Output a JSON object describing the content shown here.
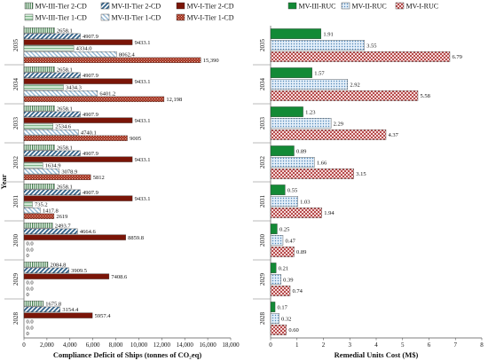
{
  "colors": {
    "tier2_dark_red": "#7a1508",
    "tier1_red_pattern": "#9e2a17",
    "tier2_blue_hatch": "#2f5f86",
    "tier1_blue_light": "#8db3d1",
    "tier2_green_vstripe": "#3f7f4a",
    "tier1_green_light": "#7fb58a",
    "ruc_green": "#138a36",
    "ruc_blue": "#4f86b8",
    "ruc_red": "#a02020"
  },
  "chart_data": [
    {
      "type": "bar",
      "orientation": "horizontal",
      "xlabel": "Compliance Deficit of Ships (tonnes of CO₂eq)",
      "ylabel": "Year",
      "xlim": [
        0,
        18000
      ],
      "xticks": [
        0,
        2000,
        4000,
        6000,
        8000,
        10000,
        12000,
        14000,
        16000,
        18000
      ],
      "xtick_labels": [
        "0",
        "2,000",
        "4,000",
        "6,000",
        "8,000",
        "10,000",
        "12,000",
        "14,000",
        "16,000",
        "18,000"
      ],
      "legend_position": "top",
      "categories": [
        "2035",
        "2034",
        "2033",
        "2032",
        "2031",
        "2030",
        "2029",
        "2028"
      ],
      "series": [
        {
          "name": "MV-III-Tier 2-CD",
          "pattern": "tier2_green_vstripe",
          "values": [
            2658.1,
            2658.1,
            2658.1,
            2658.1,
            2658.1,
            2493.7,
            2084.8,
            1675.8
          ],
          "labels": [
            "2658.1",
            "2658.1",
            "2658.1",
            "2658.1",
            "2658.1",
            "2493.7",
            "2084.8",
            "1675.8"
          ]
        },
        {
          "name": "MV-II-Tier 2-CD",
          "pattern": "tier2_blue_hatch",
          "values": [
            4907.9,
            4907.9,
            4907.9,
            4907.9,
            4907.9,
            4664.6,
            3909.5,
            3154.4
          ],
          "labels": [
            "4907.9",
            "4907.9",
            "4907.9",
            "4907.9",
            "4907.9",
            "4664.6",
            "3909.5",
            "3154.4"
          ]
        },
        {
          "name": "MV-I-Tier 2-CD",
          "pattern": "tier2_dark_red",
          "values": [
            9433.1,
            9433.1,
            9433.1,
            9433.1,
            9433.1,
            8859.8,
            7408.6,
            5957.4
          ],
          "labels": [
            "9433.1",
            "9433.1",
            "9433.1",
            "9433.1",
            "9433.1",
            "8859.8",
            "7408.6",
            "5957.4"
          ]
        },
        {
          "name": "MV-III-Tier 1-CD",
          "pattern": "tier1_green_light",
          "values": [
            4334.0,
            3434.3,
            2534.6,
            1634.9,
            735.2,
            0,
            0,
            0
          ],
          "labels": [
            "4334.0",
            "3434.3",
            "2534.6",
            "1634.9",
            "735.2",
            "0.0",
            "0.0",
            "0.0"
          ]
        },
        {
          "name": "MV-II-Tier 1-CD",
          "pattern": "tier1_blue_light",
          "values": [
            8062.4,
            6401.2,
            4740.1,
            3078.9,
            1417.8,
            0,
            0,
            0
          ],
          "labels": [
            "8062.4",
            "6401.2",
            "4740.1",
            "3078.9",
            "1417.8",
            "0.0",
            "0.0",
            "0.0"
          ]
        },
        {
          "name": "MV-I-Tier 1-CD",
          "pattern": "tier1_red_pattern",
          "values": [
            15390,
            12198,
            9005,
            5812,
            2619,
            0,
            0,
            0
          ],
          "labels": [
            "15,390",
            "12,198",
            "9005",
            "5812",
            "2619",
            "0",
            "0",
            "0"
          ]
        }
      ]
    },
    {
      "type": "bar",
      "orientation": "horizontal",
      "xlabel": "Remedial Units Cost (M$)",
      "ylabel": "",
      "xlim": [
        0,
        8
      ],
      "xticks": [
        0,
        1,
        2,
        3,
        4,
        5,
        6,
        7,
        8
      ],
      "xtick_labels": [
        "0",
        "1",
        "2",
        "3",
        "4",
        "5",
        "6",
        "7",
        "8"
      ],
      "legend_position": "top",
      "categories": [
        "2035",
        "2034",
        "2033",
        "2032",
        "2031",
        "2030",
        "2029",
        "2028"
      ],
      "series": [
        {
          "name": "MV-III-RUC",
          "pattern": "ruc_green",
          "values": [
            1.91,
            1.57,
            1.23,
            0.89,
            0.55,
            0.25,
            0.21,
            0.17
          ],
          "labels": [
            "1.91",
            "1.57",
            "1.23",
            "0.89",
            "0.55",
            "0.25",
            "0.21",
            "0.17"
          ]
        },
        {
          "name": "MV-II-RUC",
          "pattern": "ruc_blue",
          "values": [
            3.55,
            2.92,
            2.29,
            1.66,
            1.03,
            0.47,
            0.39,
            0.32
          ],
          "labels": [
            "3.55",
            "2.92",
            "2.29",
            "1.66",
            "1.03",
            "0.47",
            "0.39",
            "0.32"
          ]
        },
        {
          "name": "MV-I-RUC",
          "pattern": "ruc_red",
          "values": [
            6.79,
            5.58,
            4.37,
            3.15,
            1.94,
            0.89,
            0.74,
            0.6
          ],
          "labels": [
            "6.79",
            "5.58",
            "4.37",
            "3.15",
            "1.94",
            "0.89",
            "0.74",
            "0.60"
          ]
        }
      ]
    }
  ]
}
